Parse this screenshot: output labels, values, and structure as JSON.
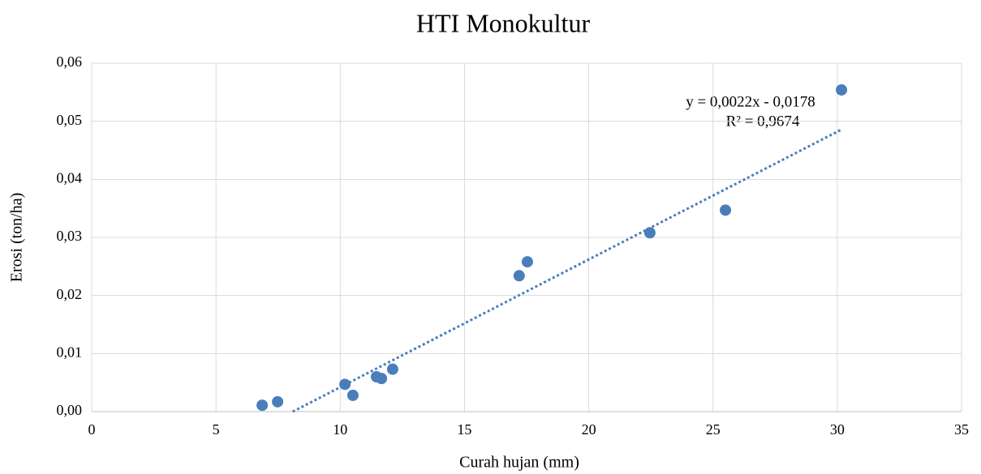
{
  "chart_data": {
    "type": "scatter",
    "title": "HTI Monokultur",
    "x_label": "Curah hujan (mm)",
    "y_label": "Erosi (ton/ha)",
    "color": "#4a7ebb",
    "grid": true,
    "x": [
      6.86,
      7.48,
      10.19,
      10.51,
      11.46,
      11.66,
      12.11,
      17.2,
      17.53,
      22.46,
      25.5,
      30.17
    ],
    "values": [
      0.0011,
      0.0017,
      0.0047,
      0.0028,
      0.006,
      0.0057,
      0.0073,
      0.0234,
      0.0258,
      0.0308,
      0.0347,
      0.0554
    ],
    "xlim": [
      0,
      35
    ],
    "xticks": [
      0,
      5,
      10,
      15,
      20,
      25,
      30,
      35
    ],
    "ylim": [
      0,
      0.06
    ],
    "yticks": [
      {
        "value": 0,
        "label": "0,00"
      },
      {
        "value": 0.01,
        "label": "0,01"
      },
      {
        "value": 0.02,
        "label": "0,02"
      },
      {
        "value": 0.03,
        "label": "0,03"
      },
      {
        "value": 0.04,
        "label": "0,04"
      },
      {
        "value": 0.05,
        "label": "0,05"
      },
      {
        "value": 0.06,
        "label": "0,06"
      }
    ],
    "trendline": {
      "slope": 0.0022,
      "intercept": -0.0178,
      "equation": "y = 0,0022x - 0,0178",
      "r_squared": "R² = 0,9674"
    }
  }
}
